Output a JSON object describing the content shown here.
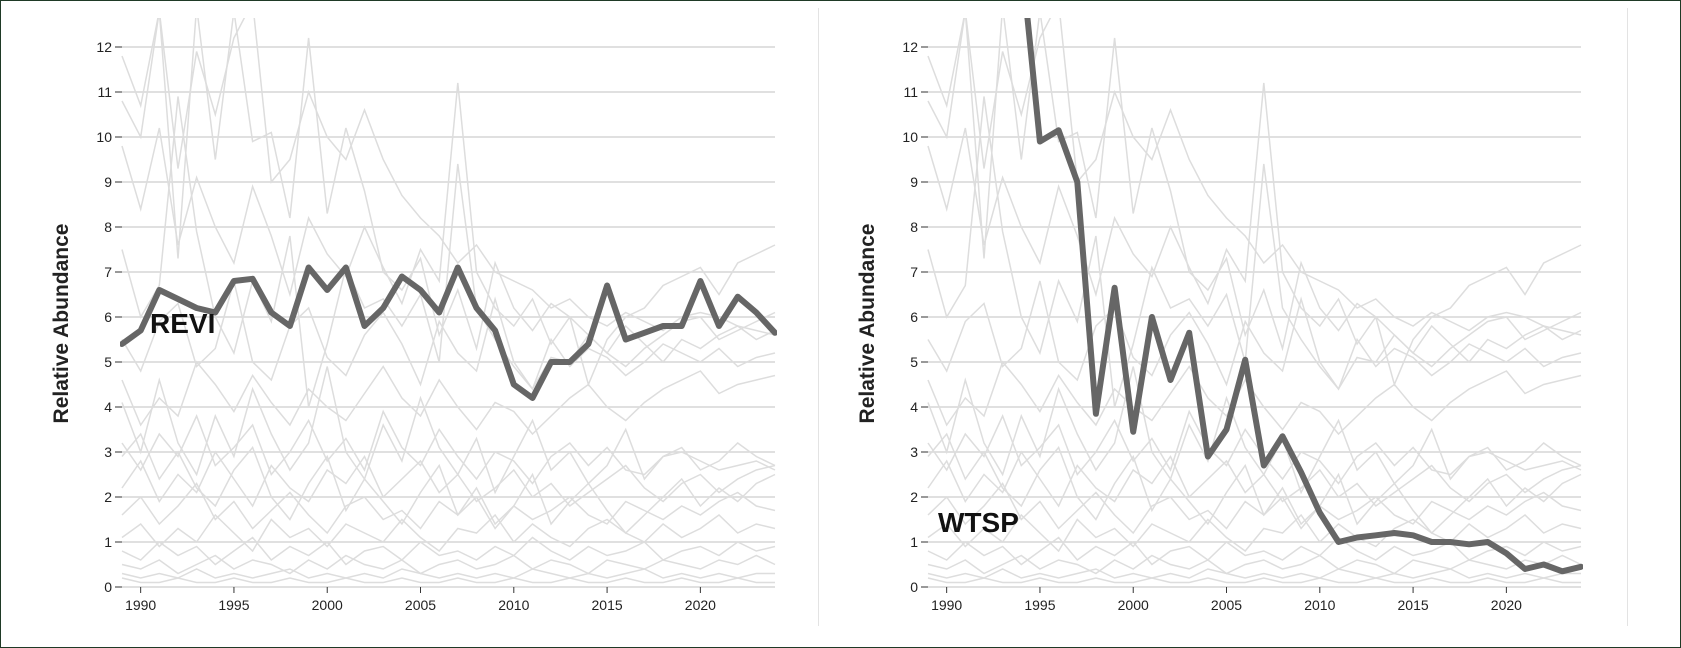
{
  "chart_data": [
    {
      "type": "line",
      "species_label": "REVI",
      "ylabel": "Relative Abundance",
      "xlabel": "",
      "ylim": [
        0,
        12.6
      ],
      "xlim": [
        1989,
        2024
      ],
      "x_ticks": [
        1990,
        1995,
        2000,
        2005,
        2010,
        2015,
        2020
      ],
      "y_ticks": [
        0,
        1,
        2,
        3,
        4,
        5,
        6,
        7,
        8,
        9,
        10,
        11,
        12
      ],
      "grid": "horizontal",
      "highlight_color": "#666666",
      "background_series_color": "#dddddd",
      "highlight": {
        "name": "REVI",
        "x": [
          1989,
          1990,
          1991,
          1992,
          1993,
          1994,
          1995,
          1996,
          1997,
          1998,
          1999,
          2000,
          2001,
          2002,
          2003,
          2004,
          2005,
          2006,
          2007,
          2008,
          2009,
          2010,
          2011,
          2012,
          2013,
          2014,
          2015,
          2016,
          2017,
          2018,
          2019,
          2020,
          2021,
          2022,
          2023,
          2024
        ],
        "values": [
          5.4,
          5.7,
          6.6,
          6.4,
          6.2,
          6.1,
          6.8,
          6.85,
          6.1,
          5.8,
          7.1,
          6.6,
          7.1,
          5.8,
          6.2,
          6.9,
          6.6,
          6.1,
          7.1,
          6.2,
          5.7,
          4.5,
          4.2,
          5.0,
          5.0,
          5.4,
          6.7,
          5.5,
          5.65,
          5.8,
          5.8,
          6.8,
          5.8,
          6.45,
          6.1,
          5.65
        ]
      }
    },
    {
      "type": "line",
      "species_label": "WTSP",
      "ylabel": "Relative Abundance",
      "xlabel": "",
      "ylim": [
        0,
        12.6
      ],
      "xlim": [
        1989,
        2024
      ],
      "x_ticks": [
        1990,
        1995,
        2000,
        2005,
        2010,
        2015,
        2020
      ],
      "y_ticks": [
        0,
        1,
        2,
        3,
        4,
        5,
        6,
        7,
        8,
        9,
        10,
        11,
        12
      ],
      "grid": "horizontal",
      "highlight_color": "#666666",
      "background_series_color": "#dddddd",
      "highlight": {
        "name": "WTSP",
        "x": [
          1994,
          1995,
          1996,
          1997,
          1998,
          1999,
          2000,
          2001,
          2002,
          2003,
          2004,
          2005,
          2006,
          2007,
          2008,
          2009,
          2010,
          2011,
          2012,
          2013,
          2014,
          2015,
          2016,
          2017,
          2018,
          2019,
          2020,
          2021,
          2022,
          2023,
          2024
        ],
        "values": [
          14.0,
          9.9,
          10.15,
          9.0,
          3.85,
          6.65,
          3.45,
          6.0,
          4.6,
          5.65,
          2.9,
          3.5,
          5.05,
          2.7,
          3.35,
          2.55,
          1.65,
          1.0,
          1.1,
          1.15,
          1.2,
          1.15,
          1.0,
          1.0,
          0.95,
          1.0,
          0.75,
          0.4,
          0.5,
          0.35,
          0.45
        ]
      }
    }
  ],
  "background_series": [
    [
      11.8,
      10.7,
      12.8,
      7.3,
      12.9,
      9.5,
      12.8,
      9.9,
      10.1,
      8.2,
      12.2,
      8.3,
      10.2,
      8.8,
      7.0,
      6.6,
      7.3,
      5.6,
      6.6,
      5.3,
      7.2,
      6.2,
      5.7,
      6.3,
      6.0,
      4.5,
      5.5,
      6.0,
      6.2,
      6.7,
      6.9,
      7.1,
      6.5,
      7.2,
      7.4,
      7.6
    ],
    [
      10.8,
      10.0,
      12.8,
      9.3,
      11.9,
      10.5,
      12.2,
      13.0,
      9.0,
      9.5,
      11.0,
      10.0,
      9.5,
      10.6,
      9.5,
      8.7,
      8.2,
      7.8,
      7.2,
      7.6,
      7.0,
      6.8,
      6.6,
      6.2,
      6.4,
      6.0,
      5.8,
      6.1,
      5.9,
      5.7,
      6.0,
      6.1,
      6.0,
      5.8,
      5.7,
      5.6
    ],
    [
      7.5,
      6.0,
      6.7,
      10.9,
      7.9,
      6.0,
      5.2,
      6.8,
      5.9,
      7.8,
      4.0,
      5.4,
      7.1,
      6.2,
      6.4,
      5.8,
      6.5,
      5.0,
      9.4,
      6.2,
      5.5,
      4.9,
      4.4,
      5.1,
      5.0,
      5.6,
      5.2,
      4.9,
      5.3,
      5.6,
      5.9,
      6.0,
      5.5,
      5.7,
      5.9,
      6.1
    ],
    [
      4.6,
      3.6,
      4.2,
      3.8,
      5.0,
      4.5,
      3.9,
      4.7,
      4.1,
      3.6,
      4.4,
      4.0,
      3.7,
      4.3,
      4.9,
      4.2,
      3.8,
      4.6,
      4.0,
      3.5,
      4.1,
      3.9,
      3.4,
      3.8,
      4.2,
      4.5,
      4.0,
      3.7,
      4.1,
      4.4,
      4.6,
      4.8,
      4.3,
      4.5,
      4.6,
      4.7
    ],
    [
      3.2,
      2.6,
      3.4,
      2.9,
      3.8,
      2.7,
      3.1,
      3.6,
      2.5,
      3.0,
      3.7,
      2.8,
      3.3,
      2.6,
      3.9,
      3.1,
      2.7,
      3.5,
      2.9,
      2.4,
      3.0,
      2.8,
      2.3,
      2.9,
      3.2,
      2.7,
      3.1,
      2.6,
      2.5,
      2.9,
      3.0,
      2.8,
      2.6,
      2.7,
      2.8,
      2.6
    ],
    [
      2.2,
      2.8,
      1.9,
      2.5,
      2.1,
      3.0,
      2.4,
      1.8,
      2.7,
      2.2,
      1.9,
      2.6,
      2.3,
      2.9,
      2.0,
      2.4,
      2.8,
      2.1,
      2.5,
      1.9,
      2.2,
      2.6,
      2.0,
      2.3,
      1.8,
      2.1,
      2.4,
      2.7,
      2.2,
      1.9,
      2.3,
      2.5,
      2.1,
      2.4,
      2.6,
      2.7
    ],
    [
      1.6,
      2.0,
      1.4,
      1.8,
      2.3,
      1.5,
      1.9,
      1.3,
      1.7,
      2.1,
      1.6,
      1.2,
      1.8,
      2.0,
      1.5,
      1.7,
      1.3,
      1.9,
      1.6,
      2.2,
      1.4,
      1.8,
      1.5,
      1.7,
      2.0,
      1.6,
      1.4,
      1.9,
      1.7,
      1.5,
      1.8,
      1.6,
      1.9,
      2.1,
      1.8,
      1.7
    ],
    [
      1.1,
      1.4,
      0.9,
      1.3,
      1.0,
      1.6,
      1.2,
      0.8,
      1.5,
      1.1,
      1.3,
      0.9,
      1.4,
      1.2,
      1.0,
      1.5,
      1.1,
      0.8,
      1.3,
      1.2,
      1.6,
      1.0,
      1.4,
      1.1,
      0.9,
      1.3,
      1.5,
      1.2,
      1.0,
      1.4,
      1.1,
      1.3,
      1.6,
      1.2,
      1.4,
      1.3
    ],
    [
      0.8,
      0.6,
      1.0,
      0.7,
      0.9,
      0.5,
      0.8,
      1.1,
      0.6,
      0.9,
      0.7,
      1.0,
      0.5,
      0.8,
      0.9,
      0.6,
      1.0,
      0.7,
      0.8,
      0.6,
      0.9,
      0.7,
      1.1,
      0.8,
      0.6,
      0.9,
      0.7,
      0.8,
      1.0,
      0.6,
      0.8,
      0.9,
      0.7,
      1.0,
      0.8,
      0.9
    ],
    [
      0.5,
      0.4,
      0.6,
      0.3,
      0.5,
      0.7,
      0.4,
      0.6,
      0.5,
      0.3,
      0.6,
      0.4,
      0.7,
      0.5,
      0.4,
      0.6,
      0.3,
      0.5,
      0.6,
      0.4,
      0.5,
      0.7,
      0.4,
      0.6,
      0.5,
      0.3,
      0.6,
      0.5,
      0.4,
      0.6,
      0.5,
      0.4,
      0.6,
      0.5,
      0.7,
      0.5
    ],
    [
      0.3,
      0.2,
      0.3,
      0.2,
      0.4,
      0.2,
      0.3,
      0.2,
      0.3,
      0.4,
      0.2,
      0.3,
      0.2,
      0.3,
      0.2,
      0.4,
      0.3,
      0.2,
      0.3,
      0.2,
      0.3,
      0.2,
      0.4,
      0.3,
      0.2,
      0.3,
      0.2,
      0.3,
      0.4,
      0.2,
      0.3,
      0.2,
      0.3,
      0.2,
      0.3,
      0.3
    ],
    [
      0.2,
      0.1,
      0.1,
      0.2,
      0.1,
      0.1,
      0.2,
      0.1,
      0.1,
      0.2,
      0.1,
      0.1,
      0.2,
      0.1,
      0.1,
      0.2,
      0.1,
      0.1,
      0.2,
      0.1,
      0.1,
      0.2,
      0.1,
      0.1,
      0.2,
      0.1,
      0.1,
      0.2,
      0.1,
      0.1,
      0.2,
      0.1,
      0.1,
      0.2,
      0.1,
      0.1
    ],
    [
      2.9,
      3.4,
      2.4,
      3.0,
      2.2,
      1.8,
      2.6,
      3.1,
      2.0,
      1.5,
      2.3,
      2.9,
      1.7,
      2.4,
      1.9,
      1.4,
      2.1,
      2.7,
      1.6,
      2.0,
      1.3,
      1.8,
      2.5,
      1.4,
      1.9,
      2.3,
      1.7,
      1.2,
      1.6,
      2.0,
      2.4,
      1.8,
      2.2,
      1.9,
      2.3,
      2.5
    ],
    [
      4.1,
      3.0,
      4.6,
      3.2,
      2.5,
      3.8,
      2.9,
      4.4,
      3.4,
      2.6,
      3.2,
      4.9,
      3.0,
      2.4,
      3.6,
      2.8,
      4.2,
      3.1,
      2.5,
      3.3,
      2.1,
      2.9,
      3.7,
      2.6,
      3.0,
      2.3,
      2.7,
      3.5,
      2.4,
      2.9,
      3.1,
      2.6,
      2.8,
      3.2,
      2.9,
      2.7
    ],
    [
      5.5,
      4.8,
      5.9,
      6.3,
      4.9,
      5.3,
      6.8,
      5.0,
      4.6,
      5.8,
      6.2,
      5.1,
      4.7,
      5.6,
      6.1,
      5.4,
      4.5,
      5.9,
      5.2,
      4.8,
      6.4,
      5.0,
      4.4,
      5.5,
      4.9,
      5.3,
      5.1,
      4.7,
      5.0,
      5.4,
      5.2,
      5.0,
      5.3,
      4.9,
      5.1,
      5.2
    ],
    [
      9.8,
      8.4,
      10.2,
      7.6,
      9.1,
      8.0,
      7.2,
      8.9,
      7.8,
      6.5,
      8.2,
      7.4,
      6.9,
      8.0,
      7.1,
      6.3,
      7.5,
      6.8,
      11.2,
      7.0,
      6.2,
      5.8,
      6.4,
      5.4,
      6.0,
      5.6,
      5.2,
      5.8,
      5.4,
      5.0,
      5.5,
      5.3,
      5.6,
      5.8,
      5.5,
      5.7
    ]
  ]
}
